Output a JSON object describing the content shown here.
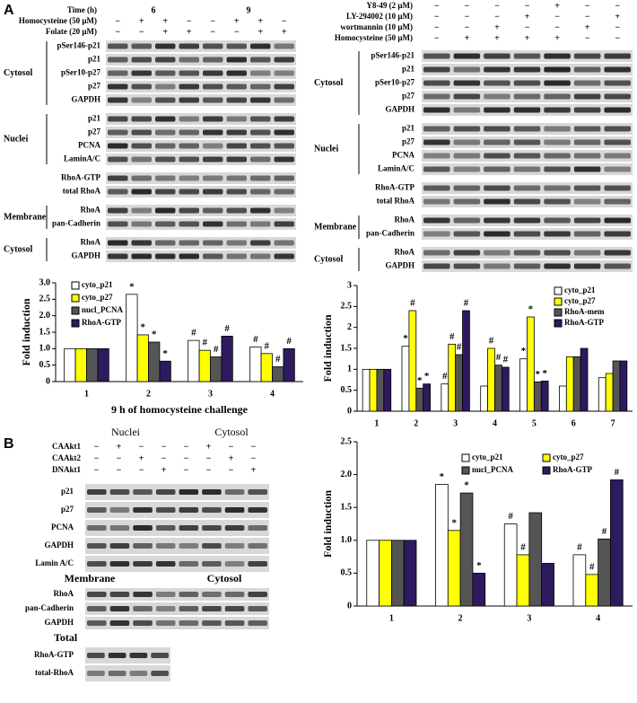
{
  "panel_labels": {
    "a": "A",
    "b": "B"
  },
  "panel_a_left": {
    "treatments": [
      {
        "label": "Time (h)",
        "marks": [
          "6",
          "9"
        ]
      },
      {
        "label": "Homocysteine (50 μM)",
        "marks": [
          "−",
          "+",
          "+",
          "−",
          "−",
          "+",
          "+",
          "−"
        ]
      },
      {
        "label": "Folate  (20 μM)",
        "marks": [
          "−",
          "−",
          "+",
          "+",
          "−",
          "−",
          "+",
          "+"
        ]
      }
    ],
    "blots": [
      {
        "group": "Cytosol",
        "rows": [
          "pSer146-p21",
          "p21",
          "pSer10-p27",
          "p27",
          "GAPDH"
        ]
      },
      {
        "group": "Nuclei",
        "rows": [
          "p21",
          "p27",
          "PCNA",
          "LaminA/C"
        ]
      },
      {
        "rows": [
          "RhoA-GTP",
          "total RhoA"
        ]
      },
      {
        "group": "Membrane",
        "rows": [
          "RhoA",
          "pan-Cadherin"
        ]
      },
      {
        "group": "Cytosol",
        "rows": [
          "RhoA",
          "GAPDH"
        ]
      }
    ]
  },
  "panel_a_right": {
    "treatments": [
      {
        "label": "Y8-49 (2 μM)",
        "marks": [
          "−",
          "−",
          "−",
          "−",
          "+",
          "−",
          "−"
        ]
      },
      {
        "label": "LY-294002 (10 μM)",
        "marks": [
          "−",
          "−",
          "−",
          "+",
          "−",
          "−",
          "+"
        ]
      },
      {
        "label": "wortmannin  (10 μM)",
        "marks": [
          "−",
          "−",
          "+",
          "−",
          "−",
          "+",
          "−"
        ]
      },
      {
        "label": "Homocysteine (50 μM)",
        "marks": [
          "−",
          "+",
          "+",
          "+",
          "+",
          "−",
          "−"
        ]
      }
    ],
    "blots": [
      {
        "group": "Cytosol",
        "rows": [
          "pSer146-p21",
          "p21",
          "pSer10-p27",
          "p27",
          "GAPDH"
        ]
      },
      {
        "group": "Nuclei",
        "rows": [
          "p21",
          "p27",
          "PCNA",
          "LaminA/C"
        ]
      },
      {
        "rows": [
          "RhoA-GTP",
          "total RhoA"
        ]
      },
      {
        "group": "Membrane",
        "rows": [
          "RhoA",
          "pan-Cadherin"
        ]
      },
      {
        "group": "Cytosol",
        "rows": [
          "RhoA",
          "GAPDH"
        ]
      }
    ]
  },
  "panel_b": {
    "headers": [
      "Nuclei",
      "Cytosol"
    ],
    "treatments": [
      {
        "label": "CAAkt1",
        "marks": [
          "−",
          "+",
          "−",
          "−",
          "−",
          "+",
          "−",
          "−"
        ]
      },
      {
        "label": "CAAkt2",
        "marks": [
          "−",
          "−",
          "+",
          "−",
          "−",
          "−",
          "+",
          "−"
        ]
      },
      {
        "label": "DNAkt1",
        "marks": [
          "−",
          "−",
          "−",
          "+",
          "−",
          "−",
          "−",
          "+"
        ]
      }
    ],
    "blots": [
      {
        "rows": [
          "p21",
          "p27",
          "PCNA",
          "GAPDH",
          "Lamin A/C"
        ]
      }
    ],
    "headers2": [
      "Membrane",
      "Cytosol"
    ],
    "blots2": [
      {
        "rows": [
          "RhoA",
          "pan-Cadherin",
          "GAPDH"
        ]
      }
    ],
    "total_header": "Total",
    "blots3": [
      {
        "rows": [
          "RhoA-GTP",
          "total-RhoA"
        ]
      }
    ]
  },
  "chart_data": [
    {
      "type": "bar",
      "ylabel": "Fold induction",
      "xlabel": "9 h of homocysteine challenge",
      "categories": [
        "1",
        "2",
        "3",
        "4"
      ],
      "ylim": [
        0,
        3
      ],
      "yticks": [
        0,
        0.5,
        {
          "value": 1,
          "label": "1.0"
        },
        1.5,
        {
          "value": 2,
          "label": "2.0"
        },
        2.5,
        {
          "value": 3,
          "label": "3.0"
        }
      ],
      "series": [
        {
          "name": "cyto_p21",
          "color": "#ffffff",
          "values": [
            1,
            2.65,
            1.25,
            1.05
          ],
          "markers": [
            null,
            "*",
            "#",
            "#"
          ]
        },
        {
          "name": "cyto_p27",
          "color": "#ffff00",
          "values": [
            1,
            1.42,
            0.95,
            0.85
          ],
          "markers": [
            null,
            "*",
            "#",
            "#"
          ]
        },
        {
          "name": "nucl_PCNA",
          "color": "#555555",
          "values": [
            1,
            1.2,
            0.75,
            0.45
          ],
          "markers": [
            null,
            "*",
            "#",
            "#"
          ]
        },
        {
          "name": "RhoA-GTP",
          "color": "#2e1a5e",
          "values": [
            1,
            0.62,
            1.38,
            1.0
          ],
          "markers": [
            null,
            "*",
            "#",
            "#"
          ]
        }
      ]
    },
    {
      "type": "bar",
      "ylabel": "Fold induction",
      "categories": [
        "1",
        "2",
        "3",
        "4",
        "5",
        "6",
        "7"
      ],
      "ylim": [
        0,
        3
      ],
      "yticks": [
        0,
        0.5,
        1,
        1.5,
        2,
        2.5,
        3
      ],
      "series": [
        {
          "name": "cyto_p21",
          "color": "#ffffff",
          "values": [
            1,
            1.55,
            0.65,
            0.6,
            1.25,
            0.6,
            0.8
          ],
          "markers": [
            null,
            "*",
            "#",
            null,
            "*",
            null,
            null
          ]
        },
        {
          "name": "cyto_p27",
          "color": "#ffff00",
          "values": [
            1,
            2.4,
            1.6,
            1.5,
            2.25,
            1.3,
            0.9
          ],
          "markers": [
            null,
            "#",
            "#",
            "#",
            "*",
            null,
            null
          ]
        },
        {
          "name": "RhoA-mem",
          "color": "#555555",
          "values": [
            1,
            0.55,
            1.35,
            1.1,
            0.7,
            1.3,
            1.2
          ],
          "markers": [
            null,
            "*",
            "#",
            "#",
            "*",
            null,
            null
          ]
        },
        {
          "name": "RhoA-GTP",
          "color": "#2e1a5e",
          "values": [
            1,
            0.65,
            2.4,
            1.05,
            0.72,
            1.5,
            1.2
          ],
          "markers": [
            null,
            "*",
            "#",
            "#",
            "*",
            null,
            null
          ]
        }
      ]
    },
    {
      "type": "bar",
      "ylabel": "Fold induction",
      "categories": [
        "1",
        "2",
        "3",
        "4"
      ],
      "ylim": [
        0,
        2.5
      ],
      "yticks": [
        0,
        0.5,
        {
          "value": 1,
          "label": "1.0"
        },
        1.5,
        {
          "value": 2,
          "label": "2.0"
        },
        2.5
      ],
      "series": [
        {
          "name": "cyto_p21",
          "color": "#ffffff",
          "values": [
            1,
            1.85,
            1.25,
            0.78
          ],
          "markers": [
            null,
            "*",
            "#",
            "#"
          ]
        },
        {
          "name": "cyto_p27",
          "color": "#ffff00",
          "values": [
            1,
            1.15,
            0.78,
            0.48
          ],
          "markers": [
            null,
            "*",
            "#",
            "#"
          ]
        },
        {
          "name": "nucl_PCNA",
          "color": "#555555",
          "values": [
            1,
            1.72,
            1.42,
            1.02
          ],
          "markers": [
            null,
            "*",
            null,
            "#"
          ]
        },
        {
          "name": "RhoA-GTP",
          "color": "#2e1a5e",
          "values": [
            1,
            0.5,
            0.65,
            1.92
          ],
          "markers": [
            null,
            "*",
            null,
            "#"
          ]
        }
      ]
    }
  ]
}
